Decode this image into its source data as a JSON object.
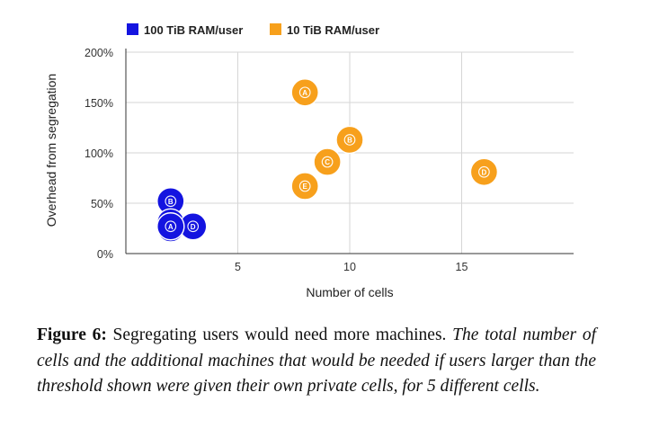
{
  "chart_data": {
    "type": "scatter",
    "title": "",
    "xlabel": "Number of cells",
    "ylabel": "Overhead from segregation",
    "xlim": [
      0,
      20
    ],
    "ylim": [
      0,
      200
    ],
    "x_ticks": [
      5,
      10,
      15
    ],
    "x_tick_labels": [
      "5",
      "10",
      "15"
    ],
    "y_ticks": [
      0,
      50,
      100,
      150,
      200
    ],
    "y_tick_labels": [
      "0%",
      "50%",
      "100%",
      "150%",
      "200%"
    ],
    "grid": true,
    "legend_position": "top",
    "series": [
      {
        "name": "100 TiB RAM/user",
        "color": "#1414e0",
        "points": [
          {
            "x": 2,
            "y": 52,
            "label": "B"
          },
          {
            "x": 2,
            "y": 31,
            "label": "C"
          },
          {
            "x": 2,
            "y": 25,
            "label": "E"
          },
          {
            "x": 3,
            "y": 27,
            "label": "D"
          },
          {
            "x": 2,
            "y": 27,
            "label": "A"
          }
        ]
      },
      {
        "name": "10 TiB RAM/user",
        "color": "#f7a01c",
        "points": [
          {
            "x": 8,
            "y": 160,
            "label": "A"
          },
          {
            "x": 10,
            "y": 113,
            "label": "B"
          },
          {
            "x": 9,
            "y": 91,
            "label": "C"
          },
          {
            "x": 8,
            "y": 67,
            "label": "E"
          },
          {
            "x": 16,
            "y": 81,
            "label": "D"
          }
        ]
      }
    ]
  },
  "caption": {
    "label": "Figure 6:",
    "text": " Segregating users would need more machines. ",
    "italic": "The total number of cells and the additional machines that would be needed if users larger than the threshold shown were given their own private cells, for 5 different cells."
  }
}
